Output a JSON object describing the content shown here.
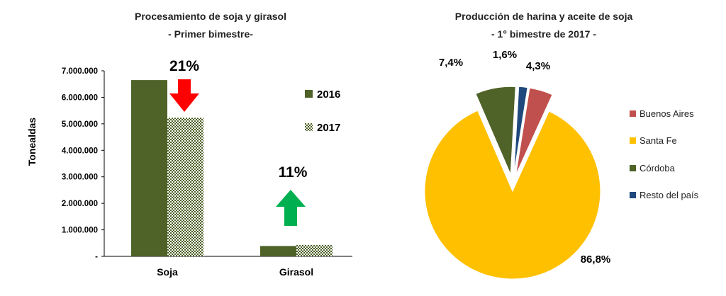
{
  "chart_data": [
    {
      "type": "bar",
      "title": "Procesamiento de soja y girasol",
      "subtitle": "-  Primer bimestre-",
      "ylabel": "Tonealdas",
      "ylim": [
        0,
        7000000
      ],
      "yticks": [
        "-",
        "1.000.000",
        "2.000.000",
        "3.000.000",
        "4.000.000",
        "5.000.000",
        "6.000.000",
        "7.000.000"
      ],
      "categories": [
        "Soja",
        "Girasol"
      ],
      "series": [
        {
          "name": "2016",
          "values": [
            6650000,
            390000
          ],
          "color": "#4f6228"
        },
        {
          "name": "2017",
          "values": [
            5230000,
            430000
          ],
          "color": "#4f6228",
          "pattern": "checker"
        }
      ],
      "annotations": [
        {
          "text": "21%",
          "category": "Soja",
          "direction": "down",
          "color": "#ff0000"
        },
        {
          "text": "11%",
          "category": "Girasol",
          "direction": "up",
          "color": "#00b050"
        }
      ],
      "grid": false,
      "legend_position": "right"
    },
    {
      "type": "pie",
      "title": "Producción de harina y aceite de soja",
      "subtitle": "- 1° bimestre de 2017 -",
      "slices": [
        {
          "label": "Buenos Aires",
          "value": 4.3,
          "display": "4,3%",
          "color": "#c0504d"
        },
        {
          "label": "Santa Fe",
          "value": 86.8,
          "display": "86,8%",
          "color": "#ffc000"
        },
        {
          "label": "Córdoba",
          "value": 7.4,
          "display": "7,4%",
          "color": "#4f6228"
        },
        {
          "label": "Resto del país",
          "value": 1.6,
          "display": "1,6%",
          "color": "#1f497d"
        }
      ],
      "legend_position": "right"
    }
  ]
}
